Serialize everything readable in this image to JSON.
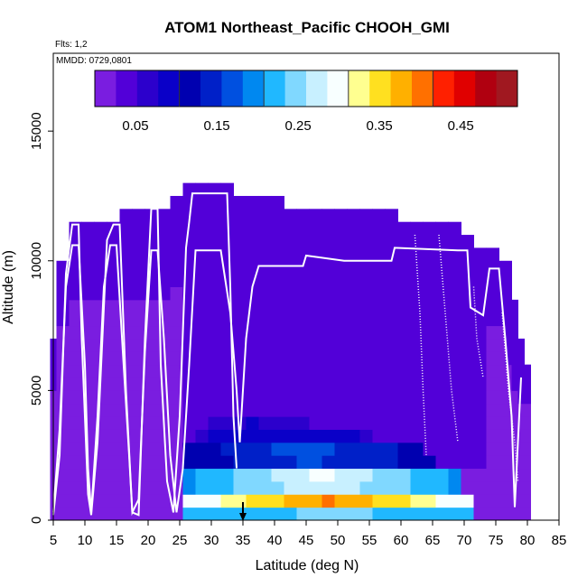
{
  "chart_data": {
    "type": "heatmap",
    "title": "ATOM1 Northeast_Pacific CHOOH_GMI",
    "flights_label": "Flts: 1,2",
    "mmdd_label": "MMDD: 0729,0801",
    "xlabel": "Latitude (deg N)",
    "ylabel": "Altitude (m)",
    "xlim": [
      5,
      85
    ],
    "ylim": [
      0,
      18000
    ],
    "x_ticks": [
      "5",
      "10",
      "15",
      "20",
      "25",
      "30",
      "35",
      "40",
      "45",
      "50",
      "55",
      "60",
      "65",
      "70",
      "75",
      "80",
      "85"
    ],
    "y_ticks": [
      "0",
      "5000",
      "10000",
      "15000"
    ],
    "colorbar": {
      "range": [
        0,
        0.52
      ],
      "tick_labels": [
        "0.05",
        "0.15",
        "0.25",
        "0.35",
        "0.45"
      ],
      "tick_values": [
        0.05,
        0.15,
        0.25,
        0.35,
        0.45
      ],
      "colors": [
        "#7a1de0",
        "#5200d8",
        "#2c00cc",
        "#0a00c8",
        "#0000b0",
        "#0020c8",
        "#0050e0",
        "#0088f0",
        "#20b8ff",
        "#80d8ff",
        "#c8f0ff",
        "#f8ffff",
        "#ffff90",
        "#ffe020",
        "#ffb000",
        "#ff7000",
        "#ff2000",
        "#e00000",
        "#b00010",
        "#a01820"
      ]
    },
    "column_tops": [
      {
        "lat": 5.5,
        "top": 7000
      },
      {
        "lat": 6.5,
        "top": 10000
      },
      {
        "lat": 8.5,
        "top": 11500
      },
      {
        "lat": 10.5,
        "top": 11500
      },
      {
        "lat": 12.5,
        "top": 11500
      },
      {
        "lat": 14.5,
        "top": 11500
      },
      {
        "lat": 16.5,
        "top": 12000
      },
      {
        "lat": 18.5,
        "top": 12000
      },
      {
        "lat": 20.5,
        "top": 12000
      },
      {
        "lat": 22.5,
        "top": 12000
      },
      {
        "lat": 24.5,
        "top": 12500
      },
      {
        "lat": 26.5,
        "top": 13000
      },
      {
        "lat": 28.5,
        "top": 13000
      },
      {
        "lat": 30.5,
        "top": 13000
      },
      {
        "lat": 32.5,
        "top": 13000
      },
      {
        "lat": 34.5,
        "top": 12500
      },
      {
        "lat": 36.5,
        "top": 12500
      },
      {
        "lat": 38.5,
        "top": 12500
      },
      {
        "lat": 40.5,
        "top": 12500
      },
      {
        "lat": 42.5,
        "top": 12000
      },
      {
        "lat": 44.5,
        "top": 12000
      },
      {
        "lat": 46.5,
        "top": 12000
      },
      {
        "lat": 48.5,
        "top": 12000
      },
      {
        "lat": 50.5,
        "top": 12000
      },
      {
        "lat": 52.5,
        "top": 12000
      },
      {
        "lat": 54.5,
        "top": 12000
      },
      {
        "lat": 56.5,
        "top": 12000
      },
      {
        "lat": 58.5,
        "top": 12000
      },
      {
        "lat": 60.5,
        "top": 11500
      },
      {
        "lat": 62.5,
        "top": 11500
      },
      {
        "lat": 64.5,
        "top": 11500
      },
      {
        "lat": 66.5,
        "top": 11500
      },
      {
        "lat": 68.5,
        "top": 11500
      },
      {
        "lat": 70.5,
        "top": 11000
      },
      {
        "lat": 72.5,
        "top": 10500
      },
      {
        "lat": 74.5,
        "top": 10500
      },
      {
        "lat": 76.5,
        "top": 10000
      },
      {
        "lat": 77.5,
        "top": 8500
      },
      {
        "lat": 78.5,
        "top": 7000
      },
      {
        "lat": 79.5,
        "top": 6000
      }
    ],
    "surface_layers": [
      {
        "alt": 500,
        "lat_min": 26,
        "lat_max": 72,
        "value": 0.24,
        "edge_value": 0.2
      },
      {
        "alt": 1000,
        "lat_min": 25,
        "lat_max": 72,
        "value": 0.4,
        "edge_value": 0.2
      },
      {
        "alt": 1500,
        "lat_min": 25,
        "lat_max": 70,
        "value": 0.28,
        "edge_value": 0.15
      },
      {
        "alt": 2000,
        "lat_min": 25,
        "lat_max": 70,
        "value": 0.3,
        "edge_value": 0.12
      },
      {
        "alt": 2500,
        "lat_min": 26,
        "lat_max": 66,
        "value": 0.16,
        "edge_value": 0.08
      },
      {
        "alt": 3000,
        "lat_min": 26,
        "lat_max": 64,
        "value": 0.17,
        "edge_value": 0.08
      },
      {
        "alt": 3500,
        "lat_min": 28,
        "lat_max": 55,
        "value": 0.1,
        "edge_value": 0.06
      },
      {
        "alt": 4000,
        "lat_min": 29,
        "lat_max": 45,
        "value": 0.08,
        "edge_value": 0.05
      }
    ],
    "flight_track_1": [
      [
        5,
        200
      ],
      [
        6,
        2500
      ],
      [
        7,
        9500
      ],
      [
        8,
        11400
      ],
      [
        9,
        11400
      ],
      [
        9.5,
        7000
      ],
      [
        10.5,
        1000
      ],
      [
        11,
        200
      ],
      [
        12,
        3000
      ],
      [
        13.5,
        10800
      ],
      [
        14.5,
        11400
      ],
      [
        15.5,
        11400
      ],
      [
        16.5,
        5000
      ],
      [
        17.5,
        300
      ],
      [
        18.5,
        200
      ],
      [
        19.5,
        7000
      ],
      [
        20.5,
        12000
      ],
      [
        21.5,
        12000
      ],
      [
        22,
        6000
      ],
      [
        23,
        1500
      ],
      [
        24,
        300
      ],
      [
        25,
        4000
      ],
      [
        26,
        10500
      ],
      [
        26.5,
        11500
      ],
      [
        27,
        12600
      ],
      [
        32.5,
        12600
      ],
      [
        33,
        9000
      ],
      [
        33.5,
        4000
      ],
      [
        34,
        2000
      ]
    ],
    "flight_track_2": [
      [
        5,
        300
      ],
      [
        6,
        3500
      ],
      [
        7,
        9000
      ],
      [
        8,
        10600
      ],
      [
        9,
        10600
      ],
      [
        10,
        6000
      ],
      [
        10.5,
        2000
      ],
      [
        11,
        300
      ],
      [
        12,
        4000
      ],
      [
        13,
        9000
      ],
      [
        14,
        10600
      ],
      [
        15,
        10600
      ],
      [
        16,
        6500
      ],
      [
        17,
        2500
      ],
      [
        17.5,
        300
      ],
      [
        18.5,
        800
      ],
      [
        19.5,
        6500
      ],
      [
        20.5,
        10400
      ],
      [
        21.5,
        10400
      ],
      [
        22.5,
        7000
      ],
      [
        23.5,
        2500
      ],
      [
        24.5,
        300
      ],
      [
        25.5,
        2000
      ],
      [
        26.5,
        6000
      ],
      [
        27.5,
        10400
      ],
      [
        31.5,
        10400
      ],
      [
        33,
        8000
      ],
      [
        34,
        5000
      ],
      [
        34.5,
        3000
      ],
      [
        35.5,
        7000
      ],
      [
        36.5,
        9000
      ],
      [
        37.5,
        9800
      ],
      [
        44.5,
        9800
      ],
      [
        45,
        10200
      ],
      [
        51,
        10000
      ],
      [
        58.5,
        10000
      ],
      [
        59,
        10500
      ],
      [
        69,
        10400
      ],
      [
        70.5,
        10400
      ],
      [
        71,
        8200
      ],
      [
        73,
        7900
      ],
      [
        74,
        9700
      ],
      [
        75.5,
        9700
      ],
      [
        76.5,
        7000
      ],
      [
        77.5,
        4000
      ],
      [
        78,
        500
      ],
      [
        78.5,
        3000
      ],
      [
        79,
        5500
      ]
    ],
    "dotted_track_segments": [
      [
        [
          62.2,
          11000
        ],
        [
          63,
          8000
        ],
        [
          63.5,
          5000
        ],
        [
          64,
          2500
        ]
      ],
      [
        [
          66,
          11000
        ],
        [
          67,
          8000
        ],
        [
          68,
          5000
        ],
        [
          69,
          3000
        ]
      ],
      [
        [
          71.5,
          9000
        ],
        [
          72,
          7000
        ],
        [
          73,
          5500
        ]
      ],
      [
        [
          76,
          8000
        ],
        [
          77,
          5000
        ],
        [
          78,
          3000
        ],
        [
          78.5,
          1500
        ]
      ]
    ],
    "arrow_marker_lat": 35
  }
}
